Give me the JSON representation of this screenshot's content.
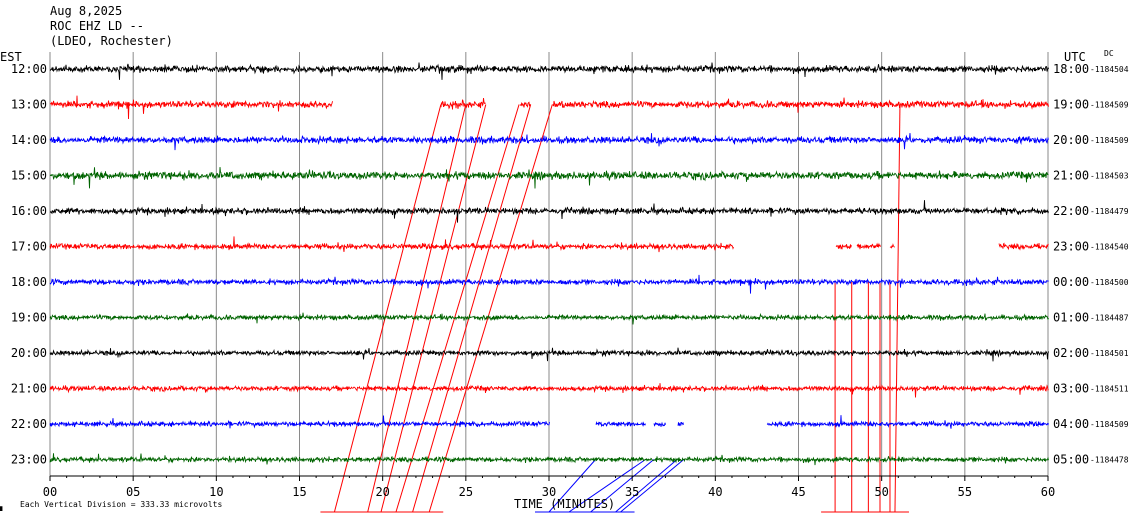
{
  "header": {
    "line1": "Aug 8,2025",
    "line2": "ROC EHZ LD --",
    "line3": "(LDEO, Rochester)"
  },
  "left_tz": "EST",
  "right_tz": "UTC",
  "dc_label": "DC",
  "footer": {
    "scale_note": "Each Vertical Division =  333.33 microvolts",
    "corner_mark": "▖"
  },
  "chart_data": {
    "type": "line",
    "title": "ROC EHZ LD --",
    "xlabel": "TIME (MINUTES)",
    "ylabel": "",
    "xlim": [
      0,
      60
    ],
    "x_ticks": [
      "00",
      "05",
      "10",
      "15",
      "20",
      "25",
      "30",
      "35",
      "40",
      "45",
      "50",
      "55",
      "60"
    ],
    "grid": true,
    "rows": [
      {
        "est": "12:00",
        "utc": "18:00",
        "dc": "-1184504",
        "color": "#000000",
        "gaps": [],
        "amp": 1.0
      },
      {
        "est": "13:00",
        "utc": "19:00",
        "dc": "-1184509",
        "color": "#ff0000",
        "gaps": [
          [
            17,
            23.5
          ],
          [
            26.2,
            28.2
          ],
          [
            28.9,
            30.2
          ]
        ],
        "amp": 1.0
      },
      {
        "est": "14:00",
        "utc": "20:00",
        "dc": "-1184509",
        "color": "#0000ff",
        "gaps": [],
        "amp": 1.0
      },
      {
        "est": "15:00",
        "utc": "21:00",
        "dc": "-1184503",
        "color": "#006400",
        "gaps": [],
        "amp": 1.1
      },
      {
        "est": "16:00",
        "utc": "22:00",
        "dc": "-1184479",
        "color": "#000000",
        "gaps": [],
        "amp": 0.9
      },
      {
        "est": "17:00",
        "utc": "23:00",
        "dc": "-1184540",
        "color": "#ff0000",
        "gaps": [
          [
            41.1,
            47.2
          ],
          [
            48.2,
            48.5
          ],
          [
            49.9,
            50.5
          ],
          [
            50.8,
            57
          ]
        ],
        "amp": 0.8
      },
      {
        "est": "18:00",
        "utc": "00:00",
        "dc": "-1184500",
        "color": "#0000ff",
        "gaps": [],
        "amp": 0.8
      },
      {
        "est": "19:00",
        "utc": "01:00",
        "dc": "-1184487",
        "color": "#006400",
        "gaps": [],
        "amp": 0.7
      },
      {
        "est": "20:00",
        "utc": "02:00",
        "dc": "-1184501",
        "color": "#000000",
        "gaps": [],
        "amp": 0.7
      },
      {
        "est": "21:00",
        "utc": "03:00",
        "dc": "-1184511",
        "color": "#ff0000",
        "gaps": [],
        "amp": 0.7
      },
      {
        "est": "22:00",
        "utc": "04:00",
        "dc": "-1184509",
        "color": "#0000ff",
        "gaps": [
          [
            30,
            32.8
          ],
          [
            35.8,
            36.3
          ],
          [
            37,
            37.7
          ],
          [
            38.1,
            43.1
          ]
        ],
        "amp": 0.7
      },
      {
        "est": "23:00",
        "utc": "05:00",
        "dc": "-1184478",
        "color": "#006400",
        "gaps": [],
        "amp": 0.7
      }
    ],
    "gap_connectors": [
      {
        "color": "#ff0000",
        "segments": [
          [
            17.1,
            13,
            23.5,
            1
          ],
          [
            19.1,
            13,
            25,
            1
          ],
          [
            19.9,
            13,
            26.2,
            1
          ],
          [
            20.8,
            13,
            28.2,
            1
          ],
          [
            21.8,
            13,
            28.9,
            1
          ],
          [
            22.8,
            13,
            30.2,
            1
          ]
        ]
      },
      {
        "color": "#ff0000",
        "segments": [
          [
            47.2,
            13,
            47.2,
            6
          ],
          [
            48.2,
            13,
            48.2,
            6
          ],
          [
            49.2,
            13,
            49.2,
            6
          ],
          [
            49.9,
            13,
            49.9,
            6
          ],
          [
            50.5,
            13,
            50.5,
            6
          ],
          [
            50.8,
            13,
            51.1,
            1
          ]
        ]
      },
      {
        "color": "#0000ff",
        "segments": [
          [
            30,
            13,
            32.8,
            11
          ],
          [
            31.2,
            13,
            35.8,
            11
          ],
          [
            32.5,
            13,
            36.3,
            11
          ],
          [
            34,
            13,
            37.7,
            11
          ],
          [
            34.3,
            13,
            38.1,
            11
          ]
        ]
      }
    ]
  }
}
